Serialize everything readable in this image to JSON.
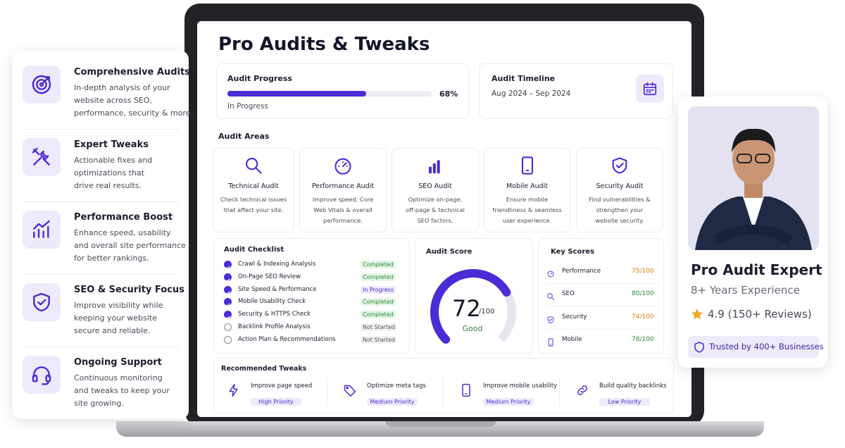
{
  "sidebar": {
    "items": [
      {
        "title": "Comprehensive Audits",
        "lines": [
          "In-depth analysis of your",
          "website across SEO,",
          "performance, security & more."
        ]
      },
      {
        "title": "Expert Tweaks",
        "lines": [
          "Actionable fixes and",
          "optimizations that",
          "drive real results."
        ]
      },
      {
        "title": "Performance Boost",
        "lines": [
          "Enhance speed, usability",
          "and overall site performance",
          "for better rankings."
        ]
      },
      {
        "title": "SEO & Security Focus",
        "lines": [
          "Improve visibility while",
          "keeping your website",
          "secure and reliable."
        ]
      },
      {
        "title": "Ongoing Support",
        "lines": [
          "Continuous monitoring",
          "and tweaks to keep your",
          "site growing."
        ]
      }
    ]
  },
  "dashboard": {
    "title": "Pro Audits & Tweaks",
    "progress": {
      "heading": "Audit Progress",
      "value": 68,
      "label": "68%",
      "status": "In Progress"
    },
    "timeline": {
      "heading": "Audit Timeline",
      "range": "Aug 2024 – Sep 2024"
    },
    "areas_heading": "Audit Areas",
    "areas": [
      {
        "title": "Technical Audit",
        "lines": [
          "Check technical issues",
          "that affect your site."
        ]
      },
      {
        "title": "Performance Audit",
        "lines": [
          "Improve speed, Core",
          "Web Vitals & overall",
          "performance."
        ]
      },
      {
        "title": "SEO Audit",
        "lines": [
          "Optimize on-page,",
          "off-page & technical",
          "SEO factors."
        ]
      },
      {
        "title": "Mobile Audit",
        "lines": [
          "Ensure mobile",
          "friendliness & seamless",
          "user experience."
        ]
      },
      {
        "title": "Security Audit",
        "lines": [
          "Find vulnerabilities &",
          "strengthen your",
          "website security."
        ]
      }
    ],
    "checklist": {
      "heading": "Audit Checklist",
      "items": [
        {
          "task": "Crawl & Indexing Analysis",
          "status": "Completed"
        },
        {
          "task": "On-Page SEO Review",
          "status": "Completed"
        },
        {
          "task": "Site Speed & Performance",
          "status": "In Progress"
        },
        {
          "task": "Mobile Usability Check",
          "status": "Completed"
        },
        {
          "task": "Security & HTTPS Check",
          "status": "Completed"
        },
        {
          "task": "Backlink Profile Analysis",
          "status": "Not Started"
        },
        {
          "task": "Action Plan & Recommendations",
          "status": "Not Started"
        }
      ]
    },
    "score": {
      "heading": "Audit Score",
      "value": 72,
      "max": 100,
      "max_label": "/100",
      "rating": "Good"
    },
    "key_scores": {
      "heading": "Key Scores",
      "items": [
        {
          "name": "Performance",
          "score": "75/100"
        },
        {
          "name": "SEO",
          "score": "80/100"
        },
        {
          "name": "Security",
          "score": "74/100"
        },
        {
          "name": "Mobile",
          "score": "78/100"
        }
      ]
    },
    "tweaks": {
      "heading": "Recommended Tweaks",
      "items": [
        {
          "title": "Improve page speed",
          "priority": "High Priority"
        },
        {
          "title": "Optimize meta tags",
          "priority": "Medium Priority"
        },
        {
          "title": "Improve mobile usability",
          "priority": "Medium Priority"
        },
        {
          "title": "Build quality backlinks",
          "priority": "Low Priority"
        }
      ]
    }
  },
  "profile": {
    "name": "Pro Audit Expert",
    "experience": "8+ Years Experience",
    "rating": "4.9 (150+ Reviews)",
    "badge": "Trusted by 400+ Businesses"
  }
}
